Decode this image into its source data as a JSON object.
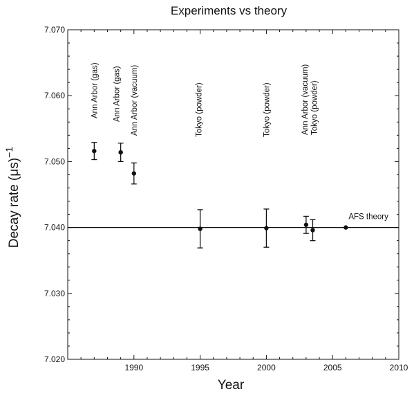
{
  "chart_data": {
    "type": "scatter",
    "title": "Experiments vs theory",
    "xlabel": "Year",
    "ylabel": "Decay rate (μs)",
    "ylabel_superscript": "−1",
    "xlim": [
      1985,
      2010
    ],
    "ylim": [
      7.02,
      7.07
    ],
    "x_ticks": [
      1990,
      1995,
      2000,
      2005,
      2010
    ],
    "x_tick_labels": [
      "1990",
      "1995",
      "2000",
      "2005",
      "2010"
    ],
    "y_ticks": [
      7.02,
      7.03,
      7.04,
      7.05,
      7.06,
      7.07
    ],
    "y_tick_labels": [
      "7.020",
      "7.030",
      "7.040",
      "7.050",
      "7.060",
      "7.070"
    ],
    "grid": false,
    "legend": "none",
    "reference_line": {
      "y": 7.04,
      "label": "AFS theory"
    },
    "points": [
      {
        "x": 1987.0,
        "y": 7.0516,
        "err": 0.0013,
        "label": "Ann Arbor (gas)"
      },
      {
        "x": 1989.0,
        "y": 7.0514,
        "err": 0.0014,
        "label": "Ann Arbor (gas)"
      },
      {
        "x": 1990.0,
        "y": 7.0482,
        "err": 0.0016,
        "label": "Ann Arbor (vacuum)"
      },
      {
        "x": 1995.0,
        "y": 7.0398,
        "err": 0.0029,
        "label": "Tokyo (powder)"
      },
      {
        "x": 2000.0,
        "y": 7.0399,
        "err": 0.0029,
        "label": "Tokyo (powder)"
      },
      {
        "x": 2003.0,
        "y": 7.0404,
        "err": 0.0013,
        "label": "Ann Arbor (vacuum)"
      },
      {
        "x": 2003.5,
        "y": 7.0396,
        "err": 0.0016,
        "label": "Tokyo (powder)"
      },
      {
        "x": 2006.0,
        "y": 7.04,
        "err": 0.0,
        "label": "AFS theory"
      }
    ]
  }
}
